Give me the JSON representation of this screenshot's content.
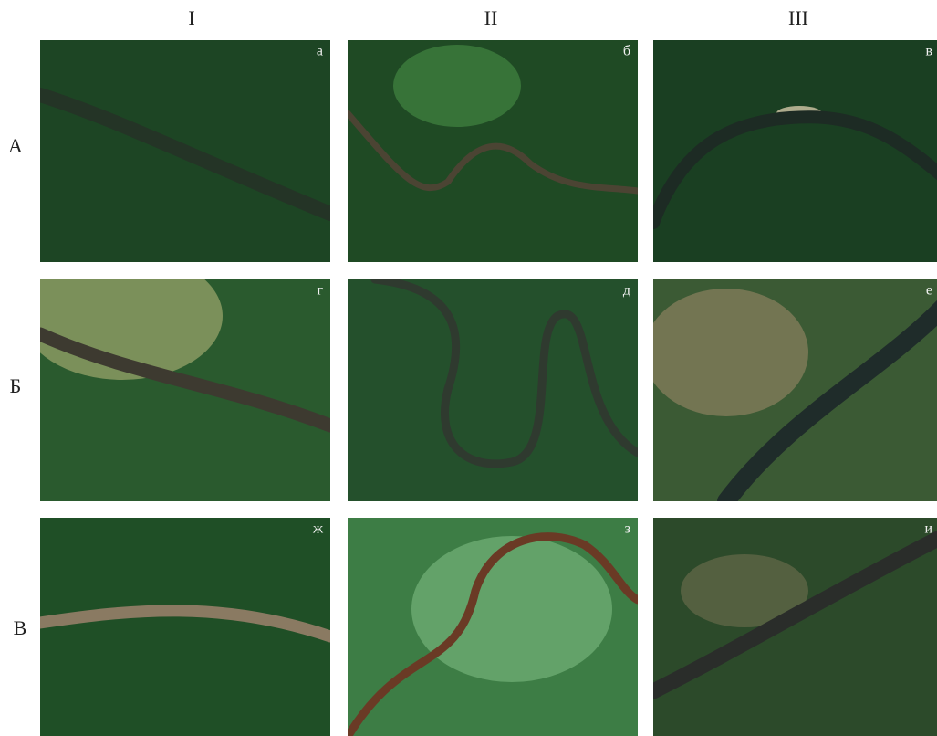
{
  "columns": [
    "I",
    "II",
    "III"
  ],
  "rows": [
    "А",
    "Б",
    "В"
  ],
  "panels": [
    [
      "а",
      "б",
      "в"
    ],
    [
      "г",
      "д",
      "е"
    ],
    [
      "ж",
      "з",
      "и"
    ]
  ]
}
